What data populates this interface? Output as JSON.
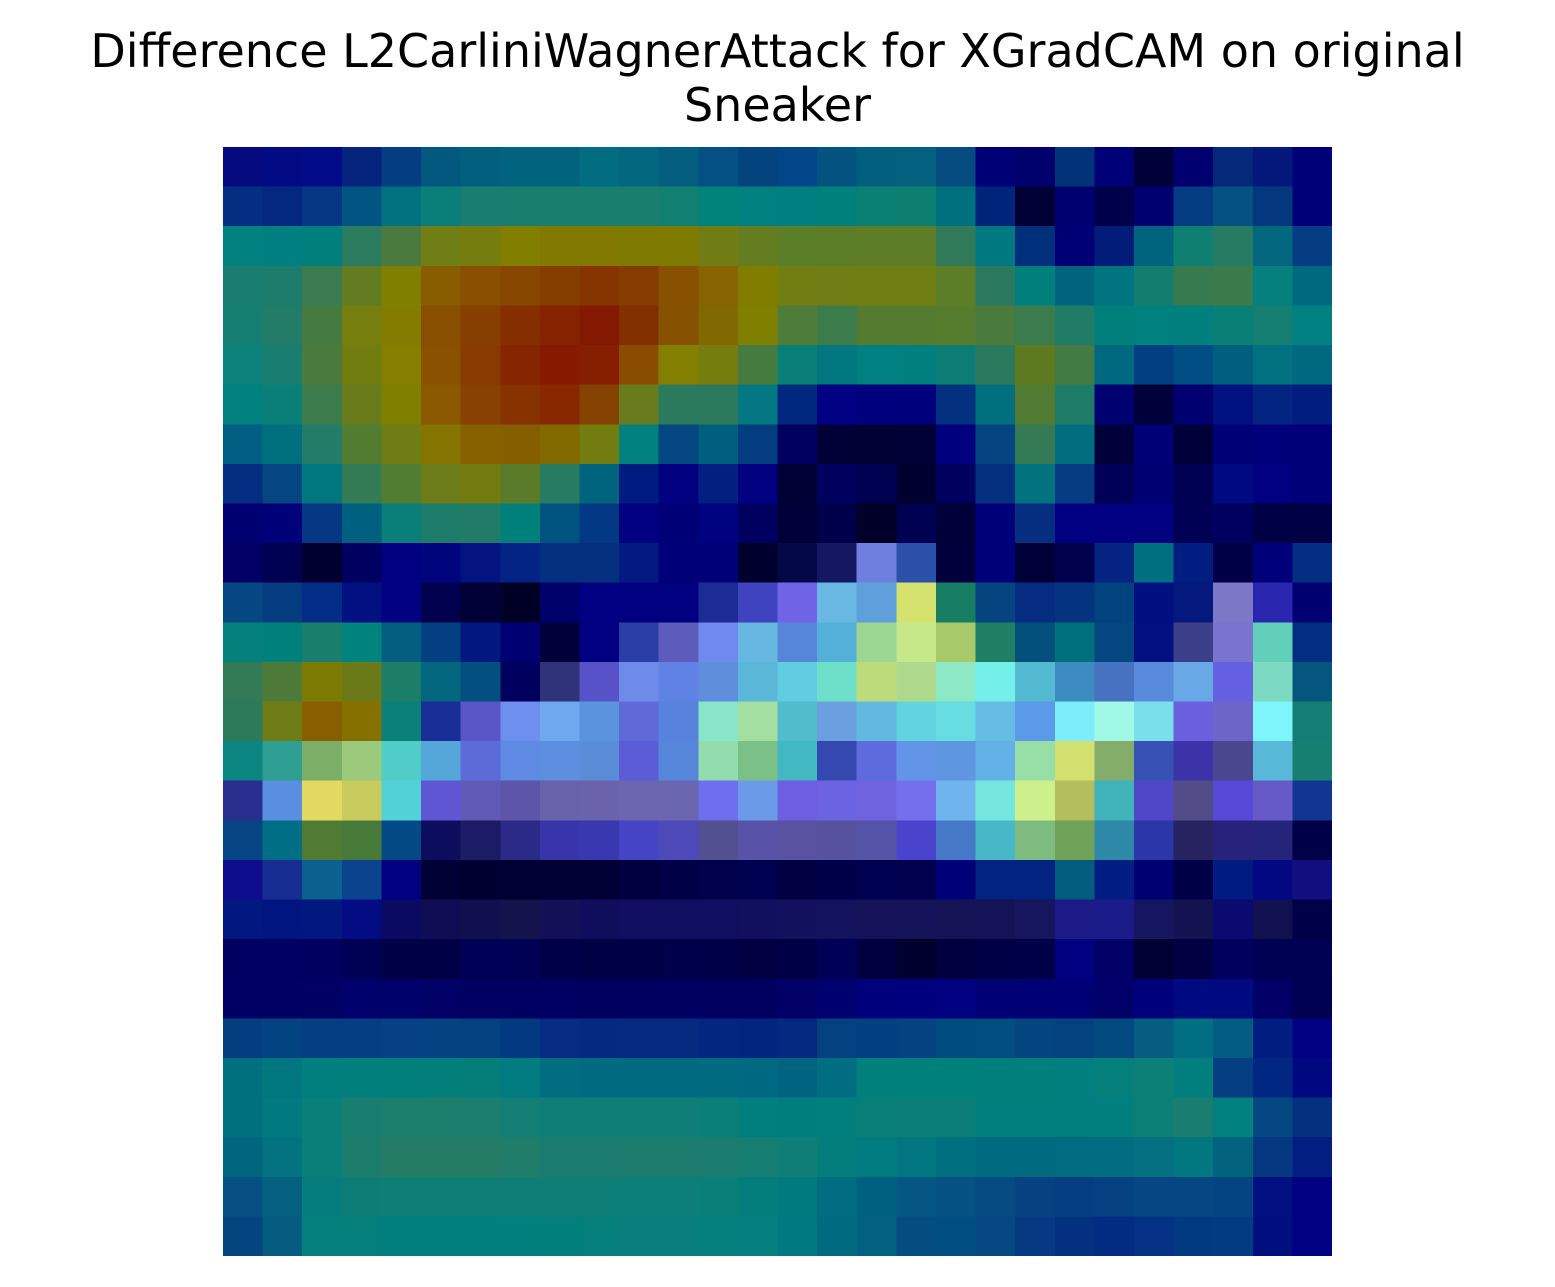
{
  "chart_data": {
    "type": "heatmap",
    "title_lines": [
      "Difference L2CarliniWagnerAttack for XGradCAM on original",
      "Sneaker"
    ],
    "axes_visible": false,
    "rows": 28,
    "cols": 28,
    "cells": [
      [
        "#050a80",
        "#030b84",
        "#020c88",
        "#05247e",
        "#053d83",
        "#03587f",
        "#02607e",
        "#02637e",
        "#02637e",
        "#026c80",
        "#02677f",
        "#035e80",
        "#044f84",
        "#03437e",
        "#034589",
        "#03527f",
        "#025f7e",
        "#04607f",
        "#064c80",
        "#000076",
        "#00006c",
        "#023278",
        "#000078",
        "#000038",
        "#000070",
        "#05287a",
        "#04187c",
        "#000078"
      ],
      [
        "#052d82",
        "#04287f",
        "#053784",
        "#025582",
        "#01707f",
        "#0a7f79",
        "#187e70",
        "#197e6e",
        "#197e6e",
        "#197e6e",
        "#1a7e6e",
        "#117f72",
        "#01827a",
        "#00807f",
        "#007f81",
        "#00807d",
        "#0a7f73",
        "#0d7f70",
        "#00707f",
        "#00247a",
        "#000036",
        "#000070",
        "#00004a",
        "#000070",
        "#053d82",
        "#045182",
        "#03387f",
        "#000078"
      ],
      [
        "#00807f",
        "#007f80",
        "#007f7d",
        "#2b7c5e",
        "#4a7a3e",
        "#6f7e15",
        "#747d0d",
        "#817e00",
        "#827a00",
        "#827a00",
        "#7e7b00",
        "#7e7b00",
        "#6f7d14",
        "#637d20",
        "#5b7e28",
        "#5b7d27",
        "#5d7e26",
        "#5d7e26",
        "#307a59",
        "#007880",
        "#00307c",
        "#000074",
        "#001b78",
        "#00637e",
        "#0e7f71",
        "#267b63",
        "#03667f",
        "#063c81"
      ],
      [
        "#197d70",
        "#1c7d6c",
        "#3a7b4f",
        "#637c21",
        "#7f7f00",
        "#875d00",
        "#8a4f00",
        "#874700",
        "#853d00",
        "#863500",
        "#863c00",
        "#875100",
        "#886400",
        "#817d00",
        "#727e12",
        "#6f7e15",
        "#6f7f14",
        "#6f7f14",
        "#5c7e27",
        "#2b7a5f",
        "#007f7d",
        "#01637e",
        "#00747f",
        "#117e70",
        "#387a50",
        "#3b7b4b",
        "#05807c",
        "#006980"
      ],
      [
        "#157f73",
        "#227c67",
        "#457b41",
        "#767f0d",
        "#837c00",
        "#884f00",
        "#863f00",
        "#852f00",
        "#852300",
        "#821900",
        "#833000",
        "#865100",
        "#816800",
        "#7f7f00",
        "#4e7c39",
        "#3c7c4a",
        "#537c31",
        "#537c31",
        "#567c2e",
        "#4a7b3c",
        "#3a7c4d",
        "#217c66",
        "#007f7d",
        "#00807f",
        "#007f7f",
        "#0a7f75",
        "#157e72",
        "#008080"
      ],
      [
        "#0a817a",
        "#197d70",
        "#4a7b3c",
        "#727d0f",
        "#857f00",
        "#8a5200",
        "#873b00",
        "#852600",
        "#861900",
        "#861f00",
        "#894c00",
        "#837f00",
        "#747d0e",
        "#467b3f",
        "#0a7f78",
        "#00767e",
        "#008080",
        "#007f7f",
        "#0b7d75",
        "#2b7a5e",
        "#5d7a20",
        "#427b44",
        "#00687f",
        "#023f82",
        "#004e83",
        "#005f7f",
        "#01707f",
        "#006980"
      ],
      [
        "#00817f",
        "#0a7f77",
        "#3c7b4b",
        "#687c1b",
        "#7f7f00",
        "#895800",
        "#884100",
        "#863300",
        "#872800",
        "#844100",
        "#687c1e",
        "#2b7a5d",
        "#2b7a5d",
        "#037882",
        "#00287f",
        "#000082",
        "#00007e",
        "#00007c",
        "#04317f",
        "#00707f",
        "#517b32",
        "#1e7b67",
        "#000070",
        "#00003a",
        "#000070",
        "#001280",
        "#042482",
        "#011d80"
      ],
      [
        "#005f82",
        "#00707f",
        "#227c67",
        "#527c30",
        "#6e7d14",
        "#857500",
        "#876000",
        "#855e00",
        "#826a00",
        "#727c0f",
        "#00807f",
        "#04467f",
        "#005f7f",
        "#033d80",
        "#000060",
        "#000036",
        "#000034",
        "#000036",
        "#00007e",
        "#054480",
        "#337a55",
        "#016e80",
        "#00003a",
        "#000076",
        "#000038",
        "#000076",
        "#00007a",
        "#000078"
      ],
      [
        "#052d82",
        "#054582",
        "#00777e",
        "#337b54",
        "#4f7d32",
        "#6b7c18",
        "#727b0f",
        "#5a7b29",
        "#277b60",
        "#00637e",
        "#001b80",
        "#000080",
        "#031f7f",
        "#000080",
        "#000034",
        "#00005e",
        "#000050",
        "#000030",
        "#00005e",
        "#04307f",
        "#01727e",
        "#053c82",
        "#000058",
        "#000072",
        "#000052",
        "#000a80",
        "#000080",
        "#000078"
      ],
      [
        "#000070",
        "#000078",
        "#053884",
        "#006080",
        "#0a7f7a",
        "#1e7c6a",
        "#207c68",
        "#00807a",
        "#01537f",
        "#033884",
        "#000080",
        "#000076",
        "#000380",
        "#000060",
        "#000038",
        "#00004a",
        "#000028",
        "#000052",
        "#00003a",
        "#000078",
        "#052e80",
        "#000080",
        "#000080",
        "#000080",
        "#000054",
        "#000060",
        "#000044",
        "#000044"
      ],
      [
        "#000066",
        "#000052",
        "#000030",
        "#000060",
        "#000080",
        "#00057e",
        "#031480",
        "#032484",
        "#04307f",
        "#04307f",
        "#041a80",
        "#000078",
        "#000078",
        "#00002e",
        "#020848",
        "#161763",
        "#6e7fe0",
        "#2a50aa",
        "#00003c",
        "#000078",
        "#000038",
        "#00004c",
        "#042382",
        "#007080",
        "#001d82",
        "#000046",
        "#00007a",
        "#052e82"
      ],
      [
        "#044783",
        "#053c80",
        "#022d86",
        "#001080",
        "#000080",
        "#00004e",
        "#000036",
        "#000026",
        "#00006a",
        "#000082",
        "#000080",
        "#000080",
        "#1b2d94",
        "#3f43bf",
        "#7064e6",
        "#68b8e3",
        "#5e9fdc",
        "#d5e26e",
        "#177e64",
        "#05447e",
        "#052c80",
        "#043380",
        "#00437e",
        "#000f80",
        "#05187e",
        "#7b78c8",
        "#2a25ae",
        "#000070"
      ],
      [
        "#04807c",
        "#00807a",
        "#197e6b",
        "#00837c",
        "#035e80",
        "#044081",
        "#02187e",
        "#000072",
        "#00003a",
        "#000080",
        "#2b3da6",
        "#5d5bbc",
        "#7089ee",
        "#66b8e0",
        "#5586d9",
        "#55b0d9",
        "#9bd692",
        "#c6e888",
        "#a8c96a",
        "#207e64",
        "#04507c",
        "#00707f",
        "#044780",
        "#001080",
        "#3d3e89",
        "#7a73d0",
        "#62cfb9",
        "#012e81"
      ],
      [
        "#327a55",
        "#4d7a38",
        "#7c7c05",
        "#6b7a18",
        "#1d7e68",
        "#02667f",
        "#034f80",
        "#00005e",
        "#30327a",
        "#5852c9",
        "#6d8cea",
        "#6082e4",
        "#5f8fdc",
        "#5ab7d8",
        "#60cde0",
        "#6ee0c9",
        "#bedb7c",
        "#aed88c",
        "#8ce8c5",
        "#74efe9",
        "#53bad2",
        "#3c8bc1",
        "#4672c1",
        "#5a8adc",
        "#68a8e6",
        "#6560e2",
        "#7ddac2",
        "#04567f"
      ],
      [
        "#2d7a5b",
        "#6e7c18",
        "#875f00",
        "#847100",
        "#0a807a",
        "#182d96",
        "#5a56c8",
        "#6e8ef0",
        "#6fa8ef",
        "#5b93dc",
        "#5f6ad8",
        "#5783de",
        "#88e5c9",
        "#a3dfa1",
        "#50bccc",
        "#6ba0e0",
        "#61b8e0",
        "#60d5e0",
        "#65dde1",
        "#65bde4",
        "#5b9ae6",
        "#7eedfb",
        "#a0f9e6",
        "#7adfea",
        "#6a5fdc",
        "#6c66c8",
        "#7ef5fb",
        "#147e74"
      ],
      [
        "#0b8582",
        "#2f9e92",
        "#7caf68",
        "#9bca7c",
        "#50cdc8",
        "#55a7da",
        "#5b6bd8",
        "#5f8ae4",
        "#5d8ee0",
        "#5a8cd8",
        "#5a5dd6",
        "#5686da",
        "#93dcad",
        "#7bc087",
        "#42b8c2",
        "#3548b0",
        "#5d6bdc",
        "#6295e8",
        "#5f96e0",
        "#62b0e5",
        "#97dfa6",
        "#d3e070",
        "#84ad6a",
        "#3752b4",
        "#3c33a8",
        "#4a478f",
        "#58b8d8",
        "#177e72"
      ],
      [
        "#2a2e8e",
        "#5a8ede",
        "#e3d862",
        "#c8cc5e",
        "#50d2d6",
        "#5e56d2",
        "#5f5ab5",
        "#5d56a8",
        "#6762a9",
        "#6a63ac",
        "#6c65b0",
        "#6a66b0",
        "#6d6fee",
        "#6a9ae8",
        "#6e5fe2",
        "#6b63e2",
        "#6f63e0",
        "#7470ec",
        "#6fb4ec",
        "#74e6de",
        "#cef08c",
        "#b4be5e",
        "#40b4b8",
        "#5046c8",
        "#514c88",
        "#5649d8",
        "#6659c8",
        "#123591"
      ],
      [
        "#074483",
        "#006f85",
        "#517b32",
        "#477a38",
        "#034a85",
        "#0c0d5c",
        "#1b1b66",
        "#2c2a89",
        "#3835ab",
        "#3a38b0",
        "#4444c4",
        "#4e49b8",
        "#535092",
        "#5853a8",
        "#5852a0",
        "#57529d",
        "#5453a8",
        "#4a43cc",
        "#4579c8",
        "#48b8c8",
        "#7dbc7e",
        "#71a25a",
        "#2e89a8",
        "#2b36a8",
        "#272360",
        "#27227a",
        "#24247a",
        "#000048"
      ],
      [
        "#0e0d8e",
        "#172d92",
        "#0a608e",
        "#0b438e",
        "#000080",
        "#000034",
        "#000030",
        "#000032",
        "#000034",
        "#000034",
        "#000040",
        "#000046",
        "#00004c",
        "#000050",
        "#000042",
        "#000048",
        "#000050",
        "#00004e",
        "#000078",
        "#022380",
        "#022380",
        "#025c7e",
        "#001d82",
        "#000072",
        "#000046",
        "#001c80",
        "#010882",
        "#110e80"
      ],
      [
        "#001880",
        "#001580",
        "#011880",
        "#030c82",
        "#0a0a62",
        "#0f0e54",
        "#11104e",
        "#14134c",
        "#121158",
        "#0f0e5c",
        "#0f0e60",
        "#0f0e60",
        "#0f0e60",
        "#11105e",
        "#12115e",
        "#13125c",
        "#14135a",
        "#14135a",
        "#141356",
        "#141358",
        "#16165e",
        "#1c1a86",
        "#1a1a88",
        "#161560",
        "#141352",
        "#0a0a70",
        "#111050",
        "#000048"
      ],
      [
        "#000062",
        "#000062",
        "#000060",
        "#000054",
        "#000046",
        "#000046",
        "#000056",
        "#000054",
        "#000048",
        "#000044",
        "#000046",
        "#00004a",
        "#000048",
        "#000042",
        "#000046",
        "#000056",
        "#000040",
        "#00002e",
        "#00003e",
        "#000046",
        "#000048",
        "#000080",
        "#000066",
        "#000032",
        "#000042",
        "#00005e",
        "#000052",
        "#000052"
      ],
      [
        "#000064",
        "#000064",
        "#000064",
        "#00006c",
        "#00006a",
        "#000066",
        "#000062",
        "#000062",
        "#000062",
        "#000060",
        "#000060",
        "#000060",
        "#000060",
        "#000060",
        "#000066",
        "#00006e",
        "#00007c",
        "#00007e",
        "#000080",
        "#000074",
        "#000074",
        "#000074",
        "#000068",
        "#00007c",
        "#000a80",
        "#000a80",
        "#000066",
        "#000050"
      ],
      [
        "#033f80",
        "#044381",
        "#053e82",
        "#053f83",
        "#054183",
        "#054282",
        "#044181",
        "#023981",
        "#052c80",
        "#042980",
        "#052a80",
        "#052a80",
        "#032780",
        "#022580",
        "#032a80",
        "#034181",
        "#023f81",
        "#044281",
        "#004c81",
        "#014c80",
        "#04447f",
        "#03417f",
        "#034a80",
        "#055d82",
        "#006f81",
        "#025c81",
        "#001d80",
        "#000080"
      ],
      [
        "#00707f",
        "#00767f",
        "#007f7f",
        "#007f7d",
        "#007f7b",
        "#027f7a",
        "#057e79",
        "#007b80",
        "#006d80",
        "#006b80",
        "#006b80",
        "#006b80",
        "#006b80",
        "#006880",
        "#00637f",
        "#006e80",
        "#00807b",
        "#00807b",
        "#00807b",
        "#007f7c",
        "#007f7d",
        "#007f7e",
        "#047f7b",
        "#0c7f76",
        "#007f7e",
        "#053f82",
        "#002882",
        "#000880"
      ],
      [
        "#00707f",
        "#007a80",
        "#097f79",
        "#197e70",
        "#1c7e6c",
        "#1c7e6c",
        "#1b7e6e",
        "#127e74",
        "#0f7e76",
        "#0f7e76",
        "#0f7e76",
        "#0f7e76",
        "#0a7f78",
        "#007f7e",
        "#007e7e",
        "#007f7f",
        "#097e77",
        "#0a7e76",
        "#0a7e76",
        "#007f7e",
        "#007f7e",
        "#007f7e",
        "#007f7e",
        "#0c7f77",
        "#197e70",
        "#00817f",
        "#054781",
        "#03307f"
      ],
      [
        "#006680",
        "#037381",
        "#097f79",
        "#1d7d6b",
        "#247c65",
        "#247c65",
        "#247c65",
        "#1f7d69",
        "#197c6e",
        "#197c6e",
        "#1b7c6d",
        "#1b7c6d",
        "#197c6e",
        "#157d71",
        "#0e7e76",
        "#037e7c",
        "#007c80",
        "#007680",
        "#006f80",
        "#006b80",
        "#006b80",
        "#006c80",
        "#006d80",
        "#036f80",
        "#017780",
        "#03637f",
        "#063882",
        "#011e80"
      ],
      [
        "#054f83",
        "#056080",
        "#057c7d",
        "#0e7d76",
        "#0e7f77",
        "#0e7f77",
        "#0e7f77",
        "#0d7f77",
        "#0e7e77",
        "#0e7f77",
        "#0c7f78",
        "#0b7f78",
        "#097f79",
        "#047e7c",
        "#007a7f",
        "#006d80",
        "#006080",
        "#055682",
        "#055182",
        "#064a82",
        "#064281",
        "#063f81",
        "#064182",
        "#054683",
        "#064683",
        "#054482",
        "#011080",
        "#000080"
      ],
      [
        "#03467f",
        "#055a80",
        "#05807c",
        "#057f7b",
        "#007f7e",
        "#007f7e",
        "#007f7e",
        "#007f7e",
        "#007f7d",
        "#057f7c",
        "#087e7c",
        "#087e7c",
        "#037f7e",
        "#027f7e",
        "#007a80",
        "#006b80",
        "#026080",
        "#044d80",
        "#004d82",
        "#064882",
        "#053982",
        "#033081",
        "#022c82",
        "#043183",
        "#023a82",
        "#023b82",
        "#000f7e",
        "#000080"
      ]
    ]
  }
}
